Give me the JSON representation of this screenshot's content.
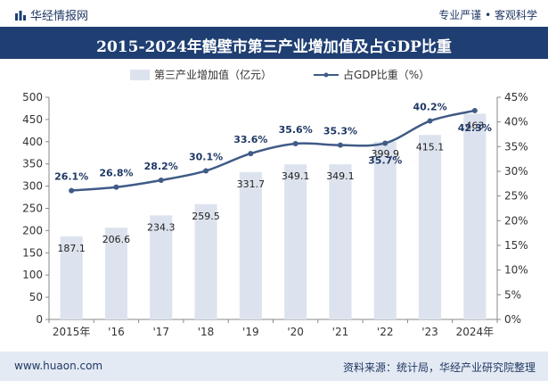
{
  "header": {
    "brand": "华经情报网",
    "slogan": "专业严谨 • 客观科学"
  },
  "footer": {
    "site": "www.huaon.com",
    "source": "资料来源：统计局，华经产业研究院整理"
  },
  "colors": {
    "title_bg": "#1f3f73",
    "bar": "#dde3ee",
    "line": "#3f5b86",
    "footer_bg": "#e4eaf3"
  },
  "chart_data": {
    "type": "bar",
    "title": "2015-2024年鹤壁市第三产业增加值及占GDP比重",
    "categories": [
      "2015年",
      "'16",
      "'17",
      "'18",
      "'19",
      "'20",
      "'21",
      "'22",
      "'23",
      "2024年"
    ],
    "series": [
      {
        "name": "第三产业增加值（亿元）",
        "type": "bar",
        "axis": "left",
        "values": [
          187.1,
          206.6,
          234.3,
          259.5,
          331.7,
          349.1,
          349.1,
          399.9,
          415.1,
          463
        ],
        "labels": [
          "187.1",
          "206.6",
          "234.3",
          "259.5",
          "331.7",
          "349.1",
          "349.1",
          "399.9",
          "415.1",
          "463"
        ]
      },
      {
        "name": "占GDP比重（%）",
        "type": "line",
        "axis": "right",
        "values": [
          26.1,
          26.8,
          28.2,
          30.1,
          33.6,
          35.6,
          35.3,
          35.7,
          40.2,
          42.3
        ],
        "labels": [
          "26.1%",
          "26.8%",
          "28.2%",
          "30.1%",
          "33.6%",
          "35.6%",
          "35.3%",
          "35.7%",
          "40.2%",
          "42.3%"
        ]
      }
    ],
    "ylim_left": [
      0,
      500
    ],
    "yticks_left": [
      "0",
      "50",
      "100",
      "150",
      "200",
      "250",
      "300",
      "350",
      "400",
      "450",
      "500"
    ],
    "ylim_right": [
      0,
      45
    ],
    "yticks_right": [
      "0%",
      "5%",
      "10%",
      "15%",
      "20%",
      "25%",
      "30%",
      "35%",
      "40%",
      "45%"
    ],
    "legend_position": "top-center",
    "grid": false
  }
}
